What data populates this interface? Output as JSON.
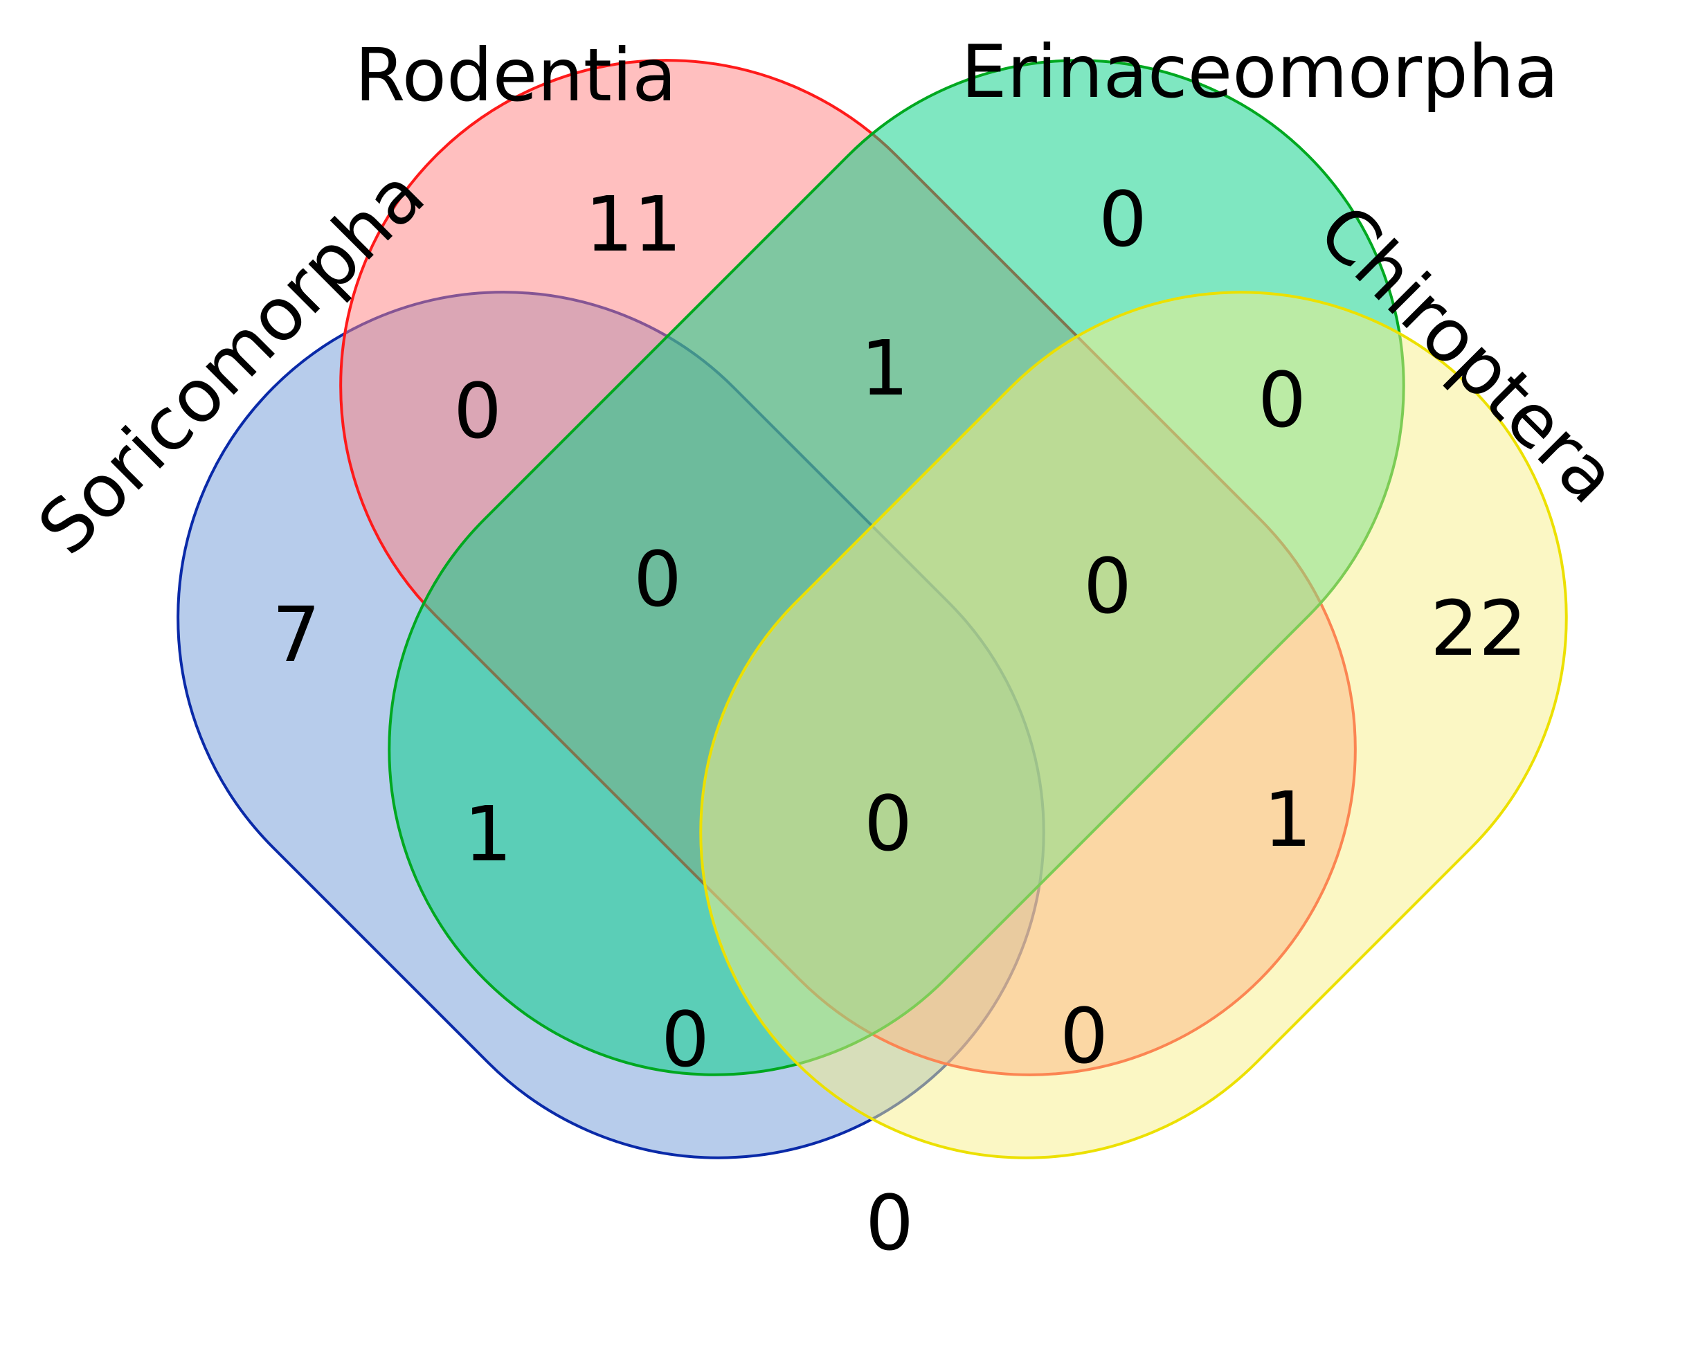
{
  "sets": [
    {
      "id": "soricomorpha",
      "label": "Soricomorpha",
      "fill": "#6f9ad8",
      "stroke": "#0a2aa8"
    },
    {
      "id": "rodentia",
      "label": "Rodentia",
      "fill": "#ff8080",
      "stroke": "#ff1a1a"
    },
    {
      "id": "erinaceomorpha",
      "label": "Erinaceomorpha",
      "fill": "#00d084",
      "stroke": "#00a820"
    },
    {
      "id": "chiroptera",
      "label": "Chiroptera",
      "fill": "#f8f08a",
      "stroke": "#ece000"
    }
  ],
  "regions": {
    "soricomorpha_only": "7",
    "rodentia_only": "11",
    "erinaceomorpha_only": "0",
    "chiroptera_only": "22",
    "soricomorpha_rodentia": "0",
    "rodentia_erinaceomorpha": "1",
    "erinaceomorpha_chiroptera": "0",
    "soricomorpha_erinaceomorpha": "1",
    "rodentia_chiroptera": "1",
    "soricomorpha_chiroptera": "0",
    "soricomorpha_rodentia_erinaceomorpha": "0",
    "rodentia_erinaceomorpha_chiroptera": "0",
    "soricomorpha_erinaceomorpha_chiroptera": "0",
    "soricomorpha_rodentia_chiroptera": "0",
    "all_four": "0"
  }
}
